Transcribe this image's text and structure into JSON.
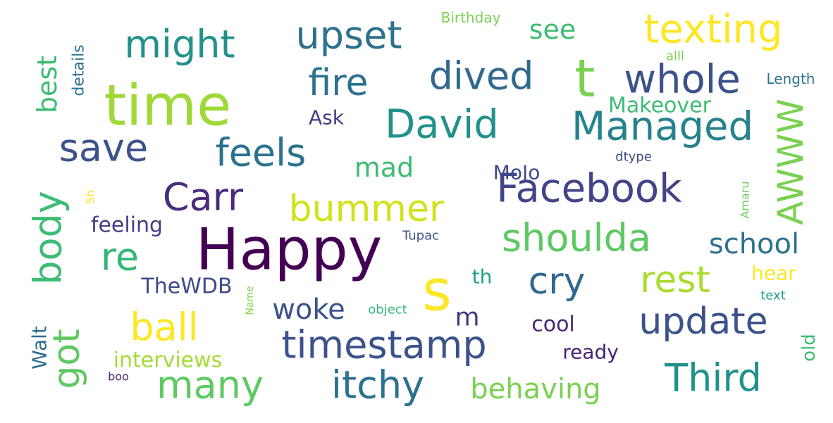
{
  "words": [
    {
      "text": "Happy",
      "color": "#440154"
    },
    {
      "text": "time",
      "color": "#9fd938"
    },
    {
      "text": "s",
      "color": "#fde725"
    },
    {
      "text": "texting",
      "color": "#fde725"
    },
    {
      "text": "timestamp",
      "color": "#3b528b"
    },
    {
      "text": "Facebook",
      "color": "#414487"
    },
    {
      "text": "t",
      "color": "#7ad151"
    },
    {
      "text": "upset",
      "color": "#2c728e"
    },
    {
      "text": "Managed",
      "color": "#26828e"
    },
    {
      "text": "dived",
      "color": "#31688e"
    },
    {
      "text": "whole",
      "color": "#3b528b"
    },
    {
      "text": "David",
      "color": "#21918c"
    },
    {
      "text": "might",
      "color": "#21918c"
    },
    {
      "text": "save",
      "color": "#3b528b"
    },
    {
      "text": "feels",
      "color": "#2c728e"
    },
    {
      "text": "fire",
      "color": "#2c728e"
    },
    {
      "text": "Carr",
      "color": "#472d7b"
    },
    {
      "text": "bummer",
      "color": "#d2e21b"
    },
    {
      "text": "shoulda",
      "color": "#5ec962"
    },
    {
      "text": "update",
      "color": "#3b528b"
    },
    {
      "text": "itchy",
      "color": "#2c728e"
    },
    {
      "text": "many",
      "color": "#5ec962"
    },
    {
      "text": "Third",
      "color": "#21918c"
    },
    {
      "text": "ball",
      "color": "#fde725"
    },
    {
      "text": "cry",
      "color": "#31688e"
    },
    {
      "text": "rest",
      "color": "#aadc32"
    },
    {
      "text": "re",
      "color": "#35b779"
    },
    {
      "text": "got",
      "color": "#5ec962"
    },
    {
      "text": "body",
      "color": "#3dbc74"
    },
    {
      "text": "AWWW",
      "color": "#7ad151"
    },
    {
      "text": "school",
      "color": "#2c728e"
    },
    {
      "text": "behaving",
      "color": "#7ad151"
    },
    {
      "text": "woke",
      "color": "#3b528b"
    },
    {
      "text": "mad",
      "color": "#3dbc74"
    },
    {
      "text": "see",
      "color": "#3dbc74"
    },
    {
      "text": "m",
      "color": "#443983"
    },
    {
      "text": "best",
      "color": "#3dbc74"
    },
    {
      "text": "Makeover",
      "color": "#3dbc74"
    },
    {
      "text": "feeling",
      "color": "#433e85"
    },
    {
      "text": "TheWDB",
      "color": "#3e4989"
    },
    {
      "text": "cool",
      "color": "#482878"
    },
    {
      "text": "interviews",
      "color": "#a5db36"
    },
    {
      "text": "hear",
      "color": "#fde725"
    },
    {
      "text": "ready",
      "color": "#482173"
    },
    {
      "text": "details",
      "color": "#2c728e"
    },
    {
      "text": "Walt",
      "color": "#2e6f8e"
    },
    {
      "text": "MoJo",
      "color": "#3e4989"
    },
    {
      "text": "Ask",
      "color": "#443983"
    },
    {
      "text": "th",
      "color": "#1fa187"
    },
    {
      "text": "old",
      "color": "#3dbc74"
    },
    {
      "text": "Birthday",
      "color": "#7ad151"
    },
    {
      "text": "Length",
      "color": "#2c728e"
    },
    {
      "text": "Tupac",
      "color": "#3b528b"
    },
    {
      "text": "dtype",
      "color": "#3e4989"
    },
    {
      "text": "Amaru",
      "color": "#6ccd5a"
    },
    {
      "text": "object",
      "color": "#35b779"
    },
    {
      "text": "text",
      "color": "#1f9e89"
    },
    {
      "text": "Name",
      "color": "#86d549"
    },
    {
      "text": "alll",
      "color": "#7ad151"
    },
    {
      "text": "boo",
      "color": "#482878"
    },
    {
      "text": "Sh",
      "color": "#fde725"
    }
  ]
}
